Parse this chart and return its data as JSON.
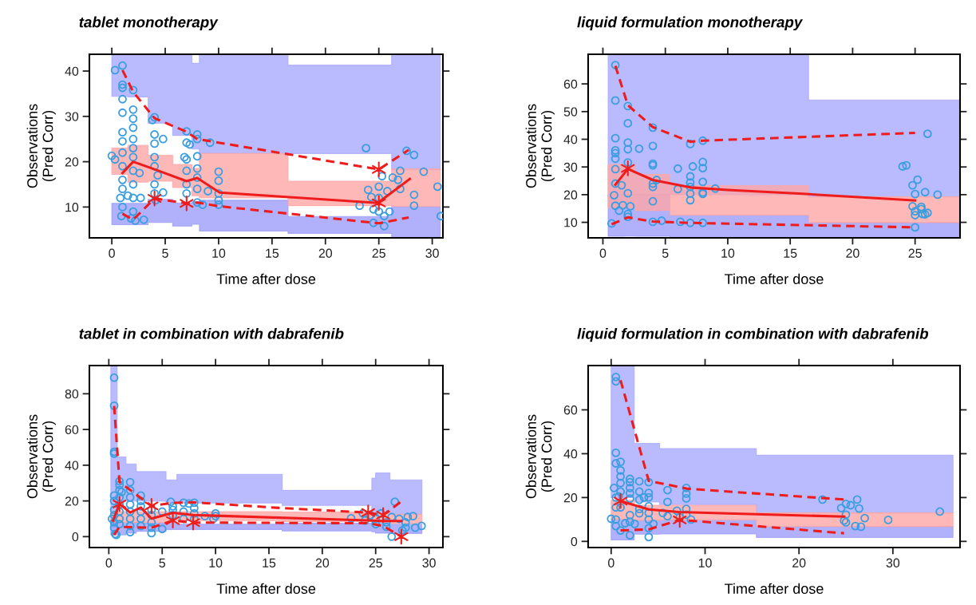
{
  "chart_data": [
    {
      "type": "scatter",
      "title": "tablet monotherapy",
      "xlabel": "Time after dose",
      "ylabel": "Observations\n(Pred Corr)",
      "xlim": [
        -2.1,
        31.0
      ],
      "ylim": [
        3.2,
        43.7
      ],
      "xticks": [
        0,
        5,
        10,
        15,
        20,
        25,
        30
      ],
      "yticks": [
        10,
        20,
        30,
        40
      ],
      "grid": false,
      "series": [
        {
          "type": "area",
          "color": "#a9a9ff",
          "values": [
            null,
            null,
            null,
            null,
            null,
            null,
            null,
            null,
            null,
            null,
            null,
            null,
            null,
            null,
            null,
            null
          ],
          "x": [
            0,
            1.5,
            1.5,
            3.4,
            3.4,
            5.7,
            5.7,
            7.5,
            7.5,
            8.2,
            8.2,
            16.5,
            16.5,
            26.2,
            26.2,
            30.75
          ],
          "lower": [
            34.4,
            34.4,
            34.3,
            34.3,
            28.5,
            28.5,
            25.8,
            25.8,
            22.8,
            22.8,
            21.8,
            21.8,
            21.8,
            21.8,
            18.2,
            18.2
          ],
          "upper": [
            43.7,
            43.7,
            43.7,
            43.7,
            43.7,
            43.7,
            43.7,
            43.7,
            41.7,
            41.7,
            43.7,
            43.7,
            41.3,
            41.3,
            43.7,
            43.7
          ]
        },
        {
          "type": "area",
          "color": "#9d9dfa",
          "values": [
            null,
            null,
            null,
            null,
            null,
            null,
            null,
            null,
            null,
            null,
            null,
            null,
            null,
            null,
            null,
            null
          ],
          "x": [
            0,
            1.5,
            1.5,
            3.4,
            3.4,
            5.7,
            5.7,
            7.5,
            7.5,
            8.2,
            8.2,
            16.5,
            16.5,
            26.2,
            26.2,
            30.75
          ],
          "lower": [
            6.1,
            6.1,
            6.1,
            6.1,
            6.6,
            6.6,
            5.8,
            5.8,
            6.2,
            6.2,
            4.7,
            4.7,
            4.2,
            4.2,
            3.2,
            3.2
          ],
          "upper": [
            10.8,
            10.8,
            10.8,
            10.8,
            11.7,
            11.7,
            10.9,
            10.9,
            11.2,
            11.2,
            11.5,
            11.5,
            7.9,
            7.9,
            10.1,
            10.1
          ]
        },
        {
          "type": "area",
          "color": "#ffa6a6",
          "values": [
            null,
            null,
            null,
            null,
            null,
            null,
            null,
            null,
            null,
            null,
            null,
            null,
            null,
            null,
            null,
            null
          ],
          "x": [
            0,
            1.5,
            1.5,
            3.4,
            3.4,
            5.7,
            5.7,
            7.5,
            7.5,
            8.2,
            8.2,
            16.5,
            16.5,
            26.2,
            26.2,
            30.75
          ],
          "lower": [
            17.2,
            17.2,
            15.5,
            15.5,
            15.7,
            15.7,
            14.3,
            14.3,
            12.5,
            12.5,
            12.0,
            12.0,
            10.3,
            10.3,
            10.1,
            10.1
          ],
          "upper": [
            23.0,
            23.0,
            23.6,
            23.6,
            21.4,
            21.4,
            19.4,
            19.4,
            18.5,
            18.5,
            21.8,
            21.8,
            15.7,
            15.7,
            18.4,
            18.4
          ]
        },
        {
          "type": "scatter",
          "marker": "circle",
          "color": "#3a9ee0",
          "x": [
            0,
            0.3,
            0.3,
            0.8,
            0.9,
            1,
            1,
            1,
            1,
            1,
            1,
            1,
            1,
            1,
            1,
            1,
            1,
            1.5,
            1.8,
            2,
            2,
            2,
            2,
            2,
            2,
            2,
            2,
            2,
            2,
            2,
            2.2,
            2.6,
            2.7,
            3,
            3.8,
            4,
            4,
            4,
            4,
            4,
            4,
            4,
            4.1,
            4.3,
            4.8,
            4.8,
            6.8,
            7,
            7,
            7,
            7,
            7,
            7,
            7.3,
            8,
            8,
            8,
            8,
            8,
            8,
            8,
            8.5,
            9,
            9.2,
            10,
            10,
            10,
            10,
            10,
            23.2,
            23.8,
            24,
            24.3,
            24.5,
            24.5,
            25,
            25,
            25,
            25.3,
            25.5,
            25.5,
            25.8,
            26,
            26.3,
            26.8,
            27,
            27,
            27.6,
            28.3,
            28.3,
            28.3,
            29.2,
            30.5,
            30.8
          ],
          "values": [
            21.3,
            20.5,
            40.2,
            12,
            8,
            41.2,
            37,
            36.3,
            33.8,
            30.8,
            26.5,
            24.5,
            22,
            19,
            16,
            14,
            10,
            12.5,
            7.5,
            35.8,
            31.5,
            29.5,
            27.5,
            25,
            23,
            21,
            18,
            15,
            12,
            9,
            7,
            17.5,
            12,
            7.2,
            29.2,
            29.8,
            26,
            24,
            21,
            19,
            15,
            13,
            11.5,
            17,
            25,
            13.2,
            21,
            26.7,
            24.2,
            20.5,
            18,
            15,
            13,
            23.8,
            26,
            25,
            21.2,
            18.5,
            16.5,
            14,
            11,
            10.5,
            13.5,
            24.2,
            17.8,
            15.8,
            13,
            11.5,
            10.5,
            10.3,
            23,
            13.8,
            12.2,
            9.5,
            6.5,
            14.5,
            12,
            9,
            16.8,
            8,
            5.8,
            13.5,
            9,
            16.5,
            16,
            14,
            18,
            22.4,
            21.5,
            12.7,
            10.3,
            17.8,
            14.5,
            8.0
          ]
        },
        {
          "type": "line",
          "line_style": "solid",
          "color": "#ee1c1c",
          "x": [
            1,
            2,
            3.9,
            7,
            8,
            10.1,
            24.9,
            27.9
          ],
          "values": [
            17.5,
            20,
            18.4,
            15.7,
            16.4,
            13.2,
            10.9,
            16.2
          ]
        },
        {
          "type": "line",
          "line_style": "dashed",
          "color": "#ee1c1c",
          "x": [
            1,
            2,
            4,
            7,
            8,
            10,
            25,
            27.8
          ],
          "values": [
            40.2,
            35.4,
            29.6,
            26.6,
            25.0,
            24.2,
            18.3,
            22.6
          ]
        },
        {
          "type": "line",
          "line_style": "dashed",
          "color": "#ee1c1c",
          "x": [
            1,
            2,
            4,
            7,
            8,
            10,
            25,
            27.8
          ],
          "values": [
            8.5,
            7.2,
            11.9,
            10.8,
            11.0,
            10.2,
            6.4,
            7.7
          ]
        },
        {
          "type": "scatter",
          "marker": "cross",
          "color": "#ee1c1c",
          "x": [
            4,
            7,
            25,
            25
          ],
          "values": [
            11.9,
            10.8,
            18.3,
            10.9
          ]
        }
      ]
    },
    {
      "type": "scatter",
      "title": "liquid formulation monotherapy",
      "xlabel": "Time after dose",
      "ylabel": "Observations\n(Pred Corr)",
      "xlim": [
        -1.18,
        28.6
      ],
      "ylim": [
        4.4,
        70.7
      ],
      "xticks": [
        0,
        5,
        10,
        15,
        20,
        25
      ],
      "yticks": [
        10,
        20,
        30,
        40,
        50,
        60
      ],
      "grid": false,
      "series": [
        {
          "type": "area",
          "color": "#a9a9ff",
          "values": [
            null,
            null,
            null,
            null,
            null,
            null,
            null,
            null,
            null,
            null
          ],
          "x": [
            0.42,
            1.72,
            1.72,
            2.58,
            2.58,
            5.36,
            5.36,
            16.47,
            16.47,
            28.6
          ],
          "lower": [
            20,
            20,
            20,
            20,
            20,
            20,
            20,
            20,
            19.2,
            19.2
          ],
          "upper": [
            70.7,
            70.7,
            70.7,
            70.7,
            70.7,
            70.7,
            70.7,
            70.7,
            54.2,
            54.2
          ]
        },
        {
          "type": "area",
          "color": "#9d9dfa",
          "values": [
            null,
            null,
            null,
            null,
            null,
            null,
            null,
            null,
            null,
            null
          ],
          "x": [
            0.42,
            1.72,
            1.72,
            2.58,
            2.58,
            5.36,
            5.36,
            16.47,
            16.47,
            28.6
          ],
          "lower": [
            5.0,
            5.0,
            5.1,
            5.1,
            5.0,
            5.0,
            4.4,
            4.4,
            4.4,
            4.4
          ],
          "upper": [
            20,
            20,
            20,
            20,
            20,
            20,
            12.6,
            12.6,
            9.9,
            9.9
          ]
        },
        {
          "type": "area",
          "color": "#ffa6a6",
          "values": [
            null,
            null,
            null,
            null,
            null,
            null,
            null,
            null,
            null,
            null
          ],
          "x": [
            0.42,
            1.72,
            1.72,
            2.58,
            2.58,
            5.36,
            5.36,
            16.47,
            16.47,
            28.6
          ],
          "lower": [
            15.2,
            15.2,
            15.2,
            15.2,
            14.3,
            14.3,
            12.6,
            12.6,
            9.9,
            9.9
          ],
          "upper": [
            30.9,
            30.9,
            30.5,
            30.5,
            27.3,
            27.3,
            23.3,
            23.3,
            19.2,
            19.2
          ]
        },
        {
          "type": "scatter",
          "marker": "circle",
          "color": "#3a9ee0",
          "x": [
            0.7,
            1,
            1,
            1,
            1,
            1,
            1,
            1,
            1,
            1,
            0.9,
            1.3,
            1.5,
            1.6,
            2,
            2,
            2,
            2,
            2,
            2,
            2,
            2,
            2.2,
            2.9,
            4,
            4,
            4,
            4,
            4,
            4,
            4,
            4,
            4.3,
            4.7,
            6,
            6,
            6.2,
            7,
            7,
            7,
            7,
            7,
            7,
            7,
            7.2,
            8,
            8,
            8,
            8,
            8,
            8,
            8,
            9,
            24,
            24.3,
            24.8,
            24.8,
            25,
            25,
            25,
            25,
            25.2,
            25.5,
            25.5,
            25.6,
            25.8,
            25.8,
            26,
            26,
            26.8
          ],
          "values": [
            9.6,
            66.8,
            54,
            40.4,
            36,
            35,
            33,
            29.2,
            24,
            16,
            19.8,
            14.2,
            23.4,
            16.2,
            52,
            45.8,
            38.8,
            36.4,
            31.6,
            20.5,
            13,
            12,
            15.8,
            36.6,
            44.2,
            37.6,
            31.2,
            30.6,
            24,
            22.8,
            17.6,
            10.2,
            25.3,
            10.6,
            29.4,
            22,
            10.2,
            38.3,
            26.6,
            24.4,
            22.8,
            20.4,
            18,
            9.8,
            30.2,
            39.5,
            31.8,
            29.6,
            24.6,
            20.8,
            20.3,
            9.8,
            22.2,
            30.2,
            30.6,
            23.4,
            15.8,
            20.2,
            14,
            12.6,
            8.2,
            25.4,
            15.6,
            14.8,
            13,
            12.9,
            20.9,
            13.4,
            42,
            20
          ]
        },
        {
          "type": "line",
          "line_style": "solid",
          "color": "#ee1c1c",
          "x": [
            1,
            2,
            4,
            7,
            10,
            16,
            25
          ],
          "values": [
            23.6,
            29.3,
            25.3,
            22.6,
            21.7,
            20.3,
            17.9
          ]
        },
        {
          "type": "line",
          "line_style": "dashed",
          "color": "#ee1c1c",
          "x": [
            1,
            2,
            4,
            7,
            8,
            25
          ],
          "values": [
            66.5,
            52.3,
            44.4,
            39.1,
            39.5,
            42.3
          ]
        },
        {
          "type": "line",
          "line_style": "dashed",
          "color": "#ee1c1c",
          "x": [
            0.7,
            2,
            4,
            7,
            25
          ],
          "values": [
            9.3,
            11.8,
            10.3,
            9.8,
            8.2
          ]
        },
        {
          "type": "scatter",
          "marker": "cross",
          "color": "#ee1c1c",
          "x": [
            2
          ],
          "values": [
            29.5
          ]
        }
      ]
    },
    {
      "type": "scatter",
      "title": "tablet in combination with dabrafenib",
      "xlabel": "Time after dose",
      "ylabel": "Observations\n(Pred Corr)",
      "xlim": [
        -1.82,
        31.3
      ],
      "ylim": [
        -6.1,
        95.8
      ],
      "xticks": [
        0,
        5,
        10,
        15,
        20,
        25,
        30
      ],
      "yticks": [
        0,
        20,
        40,
        60,
        80
      ],
      "grid": false,
      "series": [
        {
          "type": "area",
          "color": "#a9a9ff",
          "values": [
            null,
            null,
            null,
            null,
            null,
            null,
            null,
            null,
            null,
            null,
            null,
            null,
            null,
            null,
            null,
            null,
            null,
            null,
            null,
            null,
            null,
            null
          ],
          "x": [
            0.19,
            0.78,
            0.78,
            1.61,
            1.61,
            2.57,
            2.57,
            3.4,
            3.4,
            5.36,
            5.36,
            6.38,
            6.38,
            16.25,
            16.25,
            24.64,
            24.64,
            24.99,
            24.99,
            26.33,
            26.33,
            29.33
          ],
          "lower": [
            5,
            5,
            20,
            20,
            20,
            20,
            20,
            20,
            19.8,
            19.8,
            19.2,
            19.2,
            18.8,
            18.8,
            17.5,
            17.5,
            14,
            14,
            13,
            13,
            12.5,
            12.5
          ],
          "upper": [
            95.8,
            95.8,
            44.6,
            44.6,
            40.7,
            40.7,
            36.4,
            36.4,
            36.4,
            36.4,
            31.8,
            31.8,
            34.9,
            34.9,
            25.9,
            25.9,
            32.8,
            32.8,
            35.7,
            35.7,
            31.8,
            31.8
          ]
        },
        {
          "type": "area",
          "color": "#9d9dfa",
          "values": [
            null,
            null,
            null,
            null,
            null,
            null,
            null,
            null,
            null,
            null,
            null,
            null,
            null,
            null,
            null,
            null,
            null,
            null,
            null,
            null,
            null,
            null
          ],
          "x": [
            0.19,
            0.78,
            0.78,
            1.61,
            1.61,
            2.57,
            2.57,
            3.4,
            3.4,
            5.36,
            5.36,
            6.38,
            6.38,
            16.25,
            16.25,
            24.64,
            24.64,
            24.99,
            24.99,
            26.33,
            26.33,
            29.33
          ],
          "lower": [
            1,
            1,
            1,
            1,
            2,
            2,
            3,
            3,
            3,
            3,
            4,
            4,
            4,
            4,
            3.2,
            3.2,
            2.7,
            2.7,
            2,
            2,
            1.8,
            1.8
          ],
          "upper": [
            8,
            8,
            8,
            8,
            8,
            8,
            8,
            8,
            7.5,
            7.5,
            8,
            8,
            7,
            7,
            7.5,
            7.5,
            8,
            8,
            8,
            8,
            7,
            7
          ]
        },
        {
          "type": "area",
          "color": "#ffa6a6",
          "values": [
            null,
            null,
            null,
            null,
            null,
            null,
            null,
            null,
            null,
            null,
            null,
            null,
            null,
            null,
            null,
            null,
            null,
            null,
            null,
            null,
            null,
            null
          ],
          "x": [
            0.19,
            0.78,
            0.78,
            1.61,
            1.61,
            2.57,
            2.57,
            3.4,
            3.4,
            5.36,
            5.36,
            6.38,
            6.38,
            16.25,
            16.25,
            24.64,
            24.64,
            24.99,
            24.99,
            26.33,
            26.33,
            29.33
          ],
          "lower": [
            8,
            8,
            8,
            8,
            8,
            8,
            8,
            8,
            8,
            8,
            9,
            9,
            9,
            9,
            8.5,
            8.5,
            8,
            8,
            8,
            8,
            7.5,
            7.5
          ],
          "upper": [
            14,
            14,
            14,
            14,
            14,
            14,
            14,
            14,
            14,
            14,
            14,
            14,
            14,
            14,
            13.8,
            13.8,
            13,
            13,
            13,
            13,
            12.5,
            12.5
          ]
        },
        {
          "type": "scatter",
          "marker": "circle",
          "color": "#3a9ee0",
          "x": [
            0.3,
            0.5,
            0.5,
            0.5,
            0.5,
            0.5,
            0.5,
            0.5,
            0.5,
            0.5,
            0.5,
            0.6,
            0.7,
            1,
            1,
            1,
            1,
            1,
            1,
            1,
            1,
            1.2,
            2,
            2,
            2,
            2,
            2,
            2,
            2,
            2,
            3,
            3,
            3,
            3,
            3,
            3,
            4,
            4,
            4,
            4,
            4,
            5,
            5,
            5.8,
            6,
            6,
            6,
            7,
            7,
            7,
            7.5,
            8,
            8,
            8,
            8,
            9,
            9.8,
            10,
            10,
            22.7,
            23.8,
            24,
            24.5,
            25,
            25,
            25.5,
            26,
            26,
            26.5,
            26.8,
            26.5,
            27.2,
            27.5,
            27.8,
            27.8,
            28,
            28.5,
            28.7,
            29.3
          ],
          "values": [
            10,
            89,
            73.3,
            47.5,
            46.5,
            23,
            20,
            15,
            12,
            8,
            5,
            1.5,
            1,
            31,
            29,
            26,
            22,
            18,
            14,
            10,
            7,
            25,
            30.5,
            26,
            22,
            18,
            14,
            10,
            6,
            2.5,
            23,
            20,
            17,
            14,
            10,
            6,
            15,
            12,
            8,
            5,
            2,
            14,
            4.3,
            19.5,
            17,
            15,
            12,
            19,
            14,
            10,
            18.5,
            19,
            16,
            13,
            10,
            11.5,
            10,
            13,
            11.5,
            10.3,
            13,
            9,
            12,
            10,
            7,
            13,
            8,
            5.5,
            0,
            19.5,
            11,
            10,
            3.5,
            8,
            5,
            11,
            11.5,
            5,
            6
          ]
        },
        {
          "type": "line",
          "line_style": "solid",
          "color": "#ee1c1c",
          "x": [
            0.4,
            1,
            2,
            3,
            4,
            6,
            7.9,
            24.2,
            25.6,
            27.4
          ],
          "values": [
            9,
            18.3,
            13.5,
            16.3,
            10.1,
            13.3,
            12.1,
            9.1,
            8.8,
            8.8
          ]
        },
        {
          "type": "line",
          "line_style": "dashed",
          "color": "#ee1c1c",
          "x": [
            0.5,
            1,
            4,
            6,
            7.9,
            16.2,
            24.2,
            25.7,
            27.4
          ],
          "values": [
            73.2,
            30.6,
            17.2,
            18.9,
            19.2,
            16,
            13.5,
            12.1,
            19.7
          ]
        },
        {
          "type": "line",
          "line_style": "dashed",
          "color": "#ee1c1c",
          "x": [
            0.5,
            1,
            4,
            6,
            7.9,
            24.3,
            25.7,
            27.4
          ],
          "values": [
            1,
            5.5,
            5,
            9,
            7.9,
            7.5,
            6,
            0
          ]
        },
        {
          "type": "scatter",
          "marker": "cross",
          "color": "#ee1c1c",
          "x": [
            1,
            4,
            6,
            7.9,
            24.3,
            25.7,
            27.4
          ],
          "values": [
            18.3,
            17.2,
            9,
            7.9,
            13.5,
            12.1,
            0
          ]
        }
      ]
    },
    {
      "type": "scatter",
      "title": "liquid formulation in combination with dabrafenib",
      "xlabel": "Time after dose",
      "ylabel": "Observations\n(Pred Corr)",
      "xlim": [
        -2.45,
        37.15
      ],
      "ylim": [
        -2.8,
        80.2
      ],
      "xticks": [
        0,
        10,
        20,
        30
      ],
      "yticks": [
        0,
        20,
        40,
        60
      ],
      "grid": false,
      "series": [
        {
          "type": "area",
          "color": "#a9a9ff",
          "values": [
            null,
            null,
            null,
            null,
            null,
            null,
            null,
            null
          ],
          "x": [
            0,
            2.45,
            2.45,
            5.16,
            5.16,
            15.46,
            15.46,
            36.4
          ],
          "lower": [
            20,
            20,
            18,
            18,
            16.8,
            16.8,
            13.0,
            13.0
          ],
          "upper": [
            80.2,
            80.2,
            44.7,
            44.7,
            42.3,
            42.3,
            39.3,
            39.3
          ]
        },
        {
          "type": "area",
          "color": "#9d9dfa",
          "values": [
            null,
            null,
            null,
            null,
            null,
            null,
            null,
            null
          ],
          "x": [
            0,
            2.45,
            2.45,
            5.16,
            5.16,
            15.46,
            15.46,
            36.4
          ],
          "lower": [
            0.7,
            0.7,
            3.3,
            3.3,
            3.4,
            3.4,
            1.8,
            1.8
          ],
          "upper": [
            10,
            10,
            9.6,
            9.6,
            9.8,
            9.8,
            6.8,
            6.8
          ]
        },
        {
          "type": "area",
          "color": "#ffa6a6",
          "values": [
            null,
            null,
            null,
            null,
            null,
            null,
            null,
            null
          ],
          "x": [
            0,
            2.45,
            2.45,
            5.16,
            5.16,
            15.46,
            15.46,
            36.4
          ],
          "lower": [
            10,
            10,
            9.6,
            9.6,
            9.8,
            9.8,
            6.8,
            6.8
          ],
          "upper": [
            18.8,
            18.8,
            16.5,
            16.5,
            16.5,
            16.5,
            13,
            13
          ]
        },
        {
          "type": "scatter",
          "marker": "circle",
          "color": "#3a9ee0",
          "x": [
            0,
            0.3,
            0.5,
            0.5,
            0.5,
            0.5,
            0.5,
            0.5,
            0.5,
            0.5,
            0.8,
            1,
            1,
            1,
            1,
            1,
            1,
            1,
            1.5,
            2,
            2,
            2,
            2,
            2,
            2,
            2,
            2,
            2.5,
            3,
            3,
            3,
            3,
            3,
            3.5,
            4,
            4,
            4,
            4,
            4,
            4,
            4,
            4,
            4.5,
            5.5,
            6,
            6,
            6,
            7,
            7.3,
            8,
            8,
            8,
            8,
            8,
            8.5,
            22.5,
            24.5,
            24.8,
            25,
            25,
            25,
            25.5,
            26,
            26.2,
            26.4,
            26.6,
            27,
            29.5,
            35
          ],
          "values": [
            10.3,
            24.4,
            75,
            73,
            40.4,
            35.6,
            20,
            15.5,
            10,
            7,
            20.5,
            36.3,
            32.4,
            29.6,
            26.6,
            22.7,
            15.5,
            5,
            8.3,
            28.5,
            27,
            24.4,
            22,
            19.5,
            12,
            9,
            2.8,
            8,
            27.4,
            22.7,
            19,
            14.8,
            12.8,
            20,
            27,
            22.1,
            20.1,
            16,
            13,
            10,
            6,
            2,
            8,
            13,
            23.4,
            18,
            11.5,
            14,
            11,
            24.4,
            21.8,
            19.6,
            14.8,
            12.2,
            10,
            19.1,
            15.2,
            9.5,
            17.1,
            12.2,
            8.7,
            16.5,
            7,
            19.1,
            15,
            6.7,
            10.6,
            9.8,
            13.6
          ]
        },
        {
          "type": "line",
          "line_style": "solid",
          "color": "#ee1c1c",
          "x": [
            1,
            4,
            7.2,
            24.8
          ],
          "values": [
            18.4,
            14.6,
            13.4,
            11.3
          ]
        },
        {
          "type": "line",
          "line_style": "dashed",
          "color": "#ee1c1c",
          "x": [
            1,
            4,
            8.2,
            24.8
          ],
          "values": [
            73.5,
            27.6,
            24,
            19.1
          ]
        },
        {
          "type": "line",
          "line_style": "dashed",
          "color": "#ee1c1c",
          "x": [
            1,
            4,
            7.3,
            8.3,
            24.8
          ],
          "values": [
            5,
            5.5,
            9.8,
            9.5,
            3.7
          ]
        },
        {
          "type": "scatter",
          "marker": "cross",
          "color": "#ee1c1c",
          "x": [
            1,
            7.3
          ],
          "values": [
            18.4,
            9.8
          ]
        }
      ]
    }
  ]
}
